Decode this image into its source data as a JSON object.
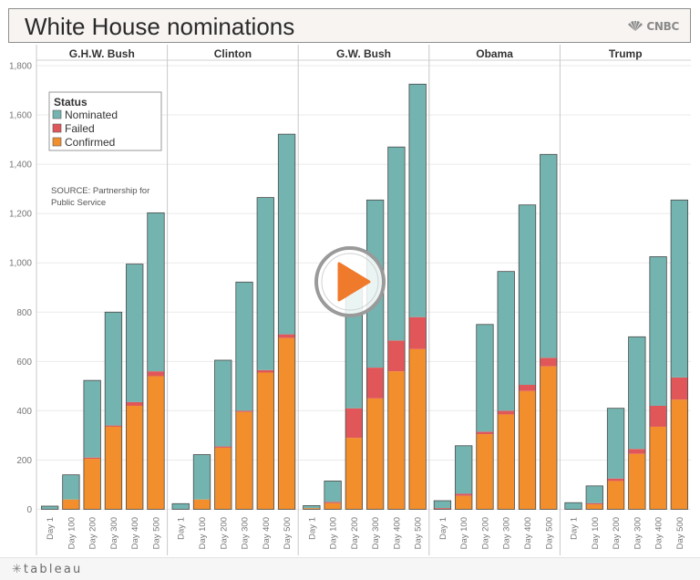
{
  "header": {
    "title": "White House nominations",
    "brand": "CNBC"
  },
  "footer": {
    "brand": "tableau"
  },
  "colors": {
    "nominated": "#73b4b0",
    "failed": "#e15759",
    "confirmed": "#f28e2b",
    "play_button": "#f07a2b",
    "axis_text": "#777777",
    "grid": "#ebebeb"
  },
  "legend": {
    "title": "Status",
    "items": [
      "Nominated",
      "Failed",
      "Confirmed"
    ]
  },
  "source_note": [
    "SOURCE: Partnership for",
    "Public Service"
  ],
  "chart_data": {
    "type": "bar",
    "stacked": true,
    "title": "White House nominations",
    "ylim": [
      0,
      1800
    ],
    "yticks": [
      0,
      200,
      400,
      600,
      800,
      1000,
      1200,
      1400,
      1600,
      1800
    ],
    "ytick_labels": [
      "0",
      "200",
      "400",
      "600",
      "800",
      "1,000",
      "1,200",
      "1,400",
      "1,600",
      "1,800"
    ],
    "categories": [
      "Day 1",
      "Day 100",
      "Day 200",
      "Day 300",
      "Day 400",
      "Day 500"
    ],
    "panels": [
      {
        "name": "G.H.W. Bush",
        "confirmed": [
          1,
          40,
          205,
          335,
          420,
          540
        ],
        "failed": [
          0,
          0,
          5,
          5,
          15,
          20
        ],
        "nominated": [
          12,
          100,
          313,
          460,
          560,
          643
        ]
      },
      {
        "name": "Clinton",
        "confirmed": [
          1,
          40,
          250,
          395,
          555,
          695
        ],
        "failed": [
          0,
          0,
          5,
          5,
          10,
          15
        ],
        "nominated": [
          22,
          182,
          350,
          522,
          700,
          812
        ]
      },
      {
        "name": "G.W. Bush",
        "confirmed": [
          5,
          25,
          290,
          450,
          560,
          650
        ],
        "failed": [
          0,
          5,
          120,
          125,
          125,
          130
        ],
        "nominated": [
          10,
          85,
          510,
          680,
          785,
          945
        ]
      },
      {
        "name": "Obama",
        "confirmed": [
          0,
          55,
          305,
          385,
          480,
          580
        ],
        "failed": [
          5,
          8,
          10,
          15,
          25,
          35
        ],
        "nominated": [
          30,
          195,
          435,
          565,
          730,
          825
        ]
      },
      {
        "name": "Trump",
        "confirmed": [
          0,
          20,
          115,
          225,
          335,
          445
        ],
        "failed": [
          0,
          5,
          10,
          20,
          85,
          90
        ],
        "nominated": [
          27,
          70,
          285,
          455,
          605,
          720
        ]
      }
    ]
  }
}
